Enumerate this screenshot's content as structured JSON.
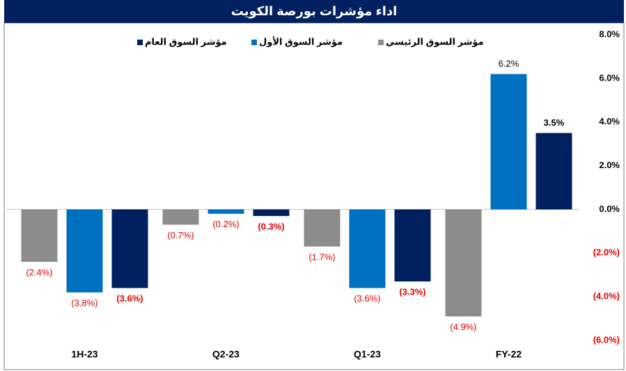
{
  "chart_data": {
    "type": "bar",
    "title": "اداء مؤشرات بورصة الكويت",
    "categories": [
      "1H-23",
      "Q2-23",
      "Q1-23",
      "FY-22"
    ],
    "series": [
      {
        "name": "مؤشر السوق الرئيسي",
        "color": "#8c8c8c",
        "values": [
          -2.4,
          -0.7,
          -1.7,
          -4.9
        ],
        "value_labels": [
          "(2.4%)",
          "(0.7%)",
          "(1.7%)",
          "(4.9%)"
        ]
      },
      {
        "name": "مؤشر السوق الأول",
        "color": "#0070c0",
        "values": [
          -3.8,
          -0.2,
          -3.6,
          6.2
        ],
        "value_labels": [
          "(3.8%)",
          "(0.2%)",
          "(3.6%)",
          "6.2%"
        ]
      },
      {
        "name": "مؤشر السوق العام",
        "color": "#002060",
        "values": [
          -3.6,
          -0.3,
          -3.3,
          3.5
        ],
        "value_labels": [
          "(3.6%)",
          "(0.3%)",
          "(3.3%)",
          "3.5%"
        ]
      }
    ],
    "ylim": [
      -6,
      8
    ],
    "yticks": [
      {
        "value": 8,
        "label": "8.0%"
      },
      {
        "value": 6,
        "label": "6.0%"
      },
      {
        "value": 4,
        "label": "4.0%"
      },
      {
        "value": 2,
        "label": "2.0%"
      },
      {
        "value": 0,
        "label": "0.0%"
      },
      {
        "value": -2,
        "label": "(2.0%)"
      },
      {
        "value": -4,
        "label": "(4.0%)"
      },
      {
        "value": -6,
        "label": "(6.0%)"
      }
    ],
    "grid": false,
    "legend": "top"
  }
}
